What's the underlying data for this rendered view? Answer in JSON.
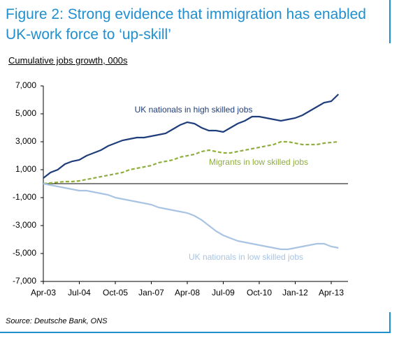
{
  "chart_data": {
    "type": "line",
    "title": "Figure 2: Strong evidence that immigration has enabled UK-work force to ‘up-skill’",
    "subtitle": "Cumulative jobs growth, 000s",
    "source": "Source: Deutsche Bank, ONS",
    "categories": [
      "Apr-03",
      null,
      null,
      null,
      null,
      "Jul-04",
      null,
      null,
      null,
      null,
      "Oct-05",
      null,
      null,
      null,
      null,
      "Jan-07",
      null,
      null,
      null,
      null,
      "Apr-08",
      null,
      null,
      null,
      null,
      "Jul-09",
      null,
      null,
      null,
      null,
      "Oct-10",
      null,
      null,
      null,
      null,
      "Jan-12",
      null,
      null,
      null,
      null,
      "Apr-13",
      null
    ],
    "series": [
      {
        "name": "UK nationals in high skilled jobs",
        "color": "#1f3d7a",
        "dash": false,
        "values": [
          400,
          800,
          1000,
          1400,
          1600,
          1700,
          2000,
          2200,
          2400,
          2700,
          2900,
          3100,
          3200,
          3300,
          3300,
          3400,
          3500,
          3600,
          3900,
          4200,
          4400,
          4300,
          4000,
          3800,
          3800,
          3700,
          4000,
          4300,
          4500,
          4800,
          4800,
          4700,
          4600,
          4500,
          4600,
          4700,
          4900,
          5200,
          5500,
          5800,
          5900,
          6400
        ]
      },
      {
        "name": "Migrants in low skilled jobs",
        "color": "#8fae3e",
        "dash": true,
        "values": [
          0,
          50,
          100,
          150,
          150,
          200,
          300,
          400,
          500,
          600,
          700,
          800,
          1000,
          1100,
          1200,
          1300,
          1500,
          1600,
          1700,
          1900,
          2000,
          2100,
          2300,
          2400,
          2300,
          2200,
          2200,
          2300,
          2400,
          2500,
          2600,
          2700,
          2800,
          3000,
          3000,
          2900,
          2800,
          2800,
          2800,
          2900,
          2950,
          3000
        ]
      },
      {
        "name": "UK nationals in low skilled jobs",
        "color": "#a9c4e2",
        "dash": false,
        "values": [
          0,
          -100,
          -200,
          -300,
          -400,
          -500,
          -500,
          -600,
          -700,
          -800,
          -1000,
          -1100,
          -1200,
          -1300,
          -1400,
          -1500,
          -1700,
          -1800,
          -1900,
          -2000,
          -2100,
          -2300,
          -2600,
          -3000,
          -3400,
          -3700,
          -3900,
          -4100,
          -4200,
          -4300,
          -4400,
          -4500,
          -4600,
          -4700,
          -4700,
          -4600,
          -4500,
          -4400,
          -4300,
          -4300,
          -4500,
          -4600
        ]
      }
    ],
    "ylim": [
      -7000,
      7000
    ],
    "yticks": [
      {
        "value": -7000,
        "label": "-7,000"
      },
      {
        "value": -5000,
        "label": "-5,000"
      },
      {
        "value": -3000,
        "label": "-3,000"
      },
      {
        "value": -1000,
        "label": "-1,000"
      },
      {
        "value": 1000,
        "label": "1,000"
      },
      {
        "value": 3000,
        "label": "3,000"
      },
      {
        "value": 5000,
        "label": "5,000"
      },
      {
        "value": 7000,
        "label": "7,000"
      }
    ],
    "grid": false
  }
}
